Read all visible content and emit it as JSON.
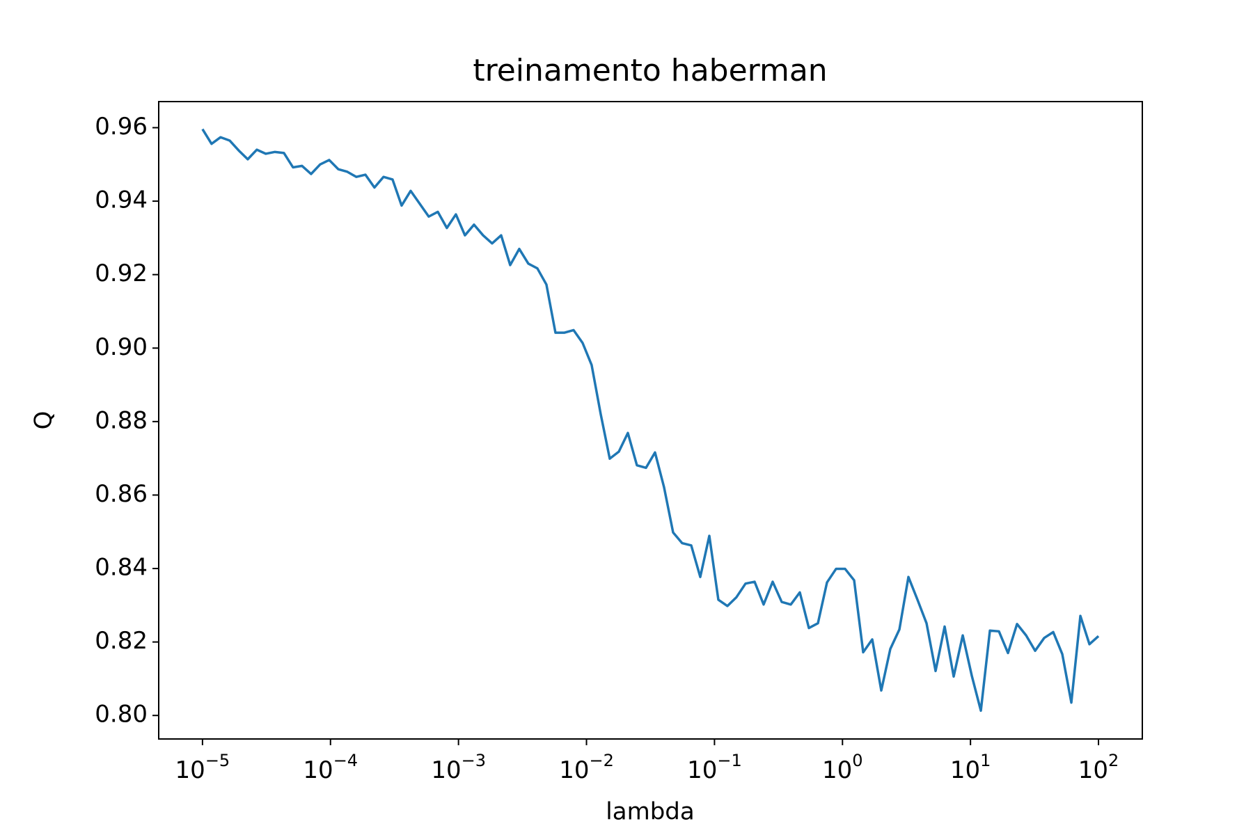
{
  "chart_data": {
    "type": "line",
    "title": "treinamento haberman",
    "x_label": "lambda",
    "y_label": "Q",
    "x_scale": "log",
    "x": [
      1e-05,
      1.177e-05,
      1.385e-05,
      1.63e-05,
      1.918e-05,
      2.257e-05,
      2.656e-05,
      3.126e-05,
      3.679e-05,
      4.329e-05,
      5.094e-05,
      5.995e-05,
      7.055e-05,
      8.302e-05,
      9.77e-05,
      0.000115,
      0.0001353,
      0.0001592,
      0.0001874,
      0.0002205,
      0.0002595,
      0.0003054,
      0.0003594,
      0.0004229,
      0.0004977,
      0.0005857,
      0.0006893,
      0.0008111,
      0.0009545,
      0.001123,
      0.001322,
      0.001556,
      0.001831,
      0.002154,
      0.002535,
      0.002983,
      0.003511,
      0.004132,
      0.004863,
      0.005722,
      0.006734,
      0.007925,
      0.009326,
      0.01097,
      0.01292,
      0.0152,
      0.01789,
      0.02105,
      0.02477,
      0.02915,
      0.0343,
      0.04037,
      0.04751,
      0.05591,
      0.06579,
      0.07743,
      0.09112,
      0.1072,
      0.1262,
      0.1485,
      0.1748,
      0.2057,
      0.242,
      0.2848,
      0.3352,
      0.3945,
      0.4642,
      0.5463,
      0.6429,
      0.7566,
      0.8904,
      1.048,
      1.233,
      1.451,
      1.708,
      2.009,
      2.364,
      2.783,
      3.275,
      3.854,
      4.535,
      5.337,
      6.281,
      7.391,
      8.698,
      10.24,
      12.05,
      14.18,
      16.68,
      19.63,
      23.1,
      27.19,
      32.0,
      37.65,
      44.31,
      52.14,
      61.36,
      72.21,
      84.98,
      100
    ],
    "series": [
      {
        "color": "#1f77b4",
        "values": [
          0.9596,
          0.9556,
          0.9574,
          0.9565,
          0.9538,
          0.9514,
          0.954,
          0.9529,
          0.9534,
          0.9531,
          0.9492,
          0.9496,
          0.9474,
          0.95,
          0.9512,
          0.9487,
          0.948,
          0.9466,
          0.9472,
          0.9437,
          0.9466,
          0.9459,
          0.9388,
          0.9428,
          0.9393,
          0.9358,
          0.9371,
          0.9327,
          0.9364,
          0.9307,
          0.9336,
          0.9307,
          0.9285,
          0.9307,
          0.9226,
          0.927,
          0.923,
          0.9217,
          0.9173,
          0.9042,
          0.9042,
          0.9049,
          0.9014,
          0.8954,
          0.882,
          0.8699,
          0.8718,
          0.8769,
          0.8681,
          0.8674,
          0.8716,
          0.8621,
          0.8498,
          0.8469,
          0.8463,
          0.8377,
          0.8489,
          0.8315,
          0.8298,
          0.8322,
          0.8359,
          0.8364,
          0.8302,
          0.8364,
          0.8309,
          0.8302,
          0.8335,
          0.8238,
          0.8251,
          0.8362,
          0.8399,
          0.8399,
          0.8368,
          0.8172,
          0.8207,
          0.8068,
          0.8181,
          0.8234,
          0.8377,
          0.8315,
          0.8251,
          0.8121,
          0.8242,
          0.8106,
          0.8218,
          0.8108,
          0.8013,
          0.8231,
          0.8229,
          0.817,
          0.8249,
          0.8218,
          0.8176,
          0.8211,
          0.8227,
          0.8167,
          0.8035,
          0.8271,
          0.8194,
          0.8216
        ]
      }
    ],
    "xlim": [
      4.55e-06,
      220
    ],
    "ylim": [
      0.7936,
      0.9671
    ],
    "xticks": [
      {
        "value": 1e-05,
        "label": "10−5"
      },
      {
        "value": 0.0001,
        "label": "10−4"
      },
      {
        "value": 0.001,
        "label": "10−3"
      },
      {
        "value": 0.01,
        "label": "10−2"
      },
      {
        "value": 0.1,
        "label": "10−1"
      },
      {
        "value": 1,
        "label": "100"
      },
      {
        "value": 10,
        "label": "101"
      },
      {
        "value": 100,
        "label": "102"
      }
    ],
    "yticks": [
      {
        "value": 0.8,
        "label": "0.80"
      },
      0.82,
      0.84,
      0.86,
      0.88,
      {
        "value": 0.9,
        "label": "0.90"
      },
      0.92,
      0.94,
      0.96
    ],
    "grid": false
  }
}
